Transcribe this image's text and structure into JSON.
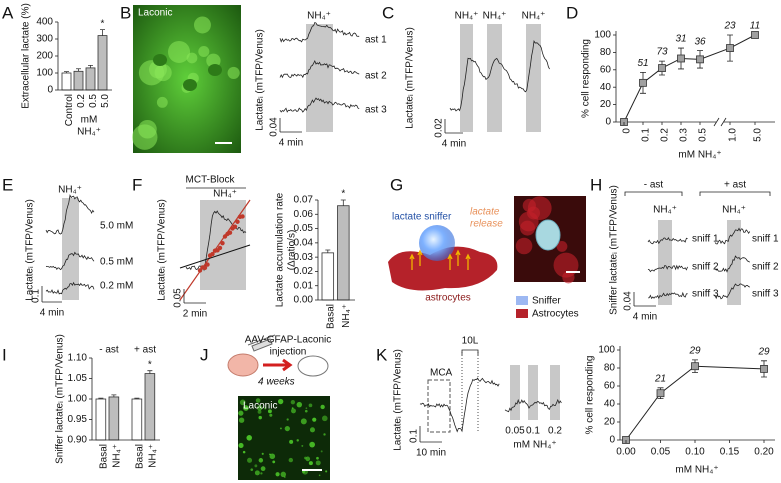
{
  "figure": {
    "panels": [
      "A",
      "B",
      "C",
      "D",
      "E",
      "F",
      "G",
      "H",
      "I",
      "J",
      "K"
    ],
    "B": {
      "image_label": "Laconic",
      "stimulus": "NH₄⁺",
      "ylabel": "Lactateᵢ (mTFP/Venus)",
      "traces": [
        "ast 1",
        "ast 2",
        "ast 3"
      ],
      "scale_y": "0.04",
      "scale_x": "4 min"
    },
    "C": {
      "stimuli": [
        "NH₄⁺",
        "NH₄⁺",
        "NH₄⁺"
      ],
      "ylabel": "Lactateᵢ (mTFP/Venus)",
      "scale_y": "0.02",
      "scale_x": "4 min"
    },
    "E": {
      "stimulus": "NH₄⁺",
      "traces": [
        "5.0 mM",
        "0.5 mM",
        "0.2 mM"
      ],
      "ylabel": "Lactateᵢ (mTFP/Venus)",
      "scale_y": "0.1",
      "scale_x": "4 min"
    },
    "F": {
      "block": "MCT-Block",
      "stimulus": "NH₄⁺",
      "ylabel": "Lactateᵢ (mTFP/Venus)",
      "scale_y": "0.05",
      "scale_x": "2 min"
    },
    "G": {
      "sniffer": "lactate sniffer",
      "release": [
        "lactate",
        "release"
      ],
      "cells": "astrocytes",
      "legend": [
        "Sniffer",
        "Astrocytes"
      ]
    },
    "H": {
      "groups": [
        "- ast",
        "+ ast"
      ],
      "stimuli": [
        "NH₄⁺",
        "NH₄⁺"
      ],
      "traces_minus": [
        "sniff 1",
        "sniff 2",
        "sniff 3"
      ],
      "traces_plus": [
        "sniff 1",
        "sniff 2",
        "sniff 3"
      ],
      "ylabel": "Sniffer lactateᵢ (mTFP/Venus)",
      "scale_y": "0.04",
      "scale_x": "4 min"
    },
    "J": {
      "injection": [
        "AAV-GFAP-Laconic",
        "injection"
      ],
      "duration": "4 weeks",
      "image_label": "Laconic"
    },
    "K": {
      "ylabel": "Lactateᵢ (mTFP/Venus)",
      "events": [
        "MCA",
        "10L"
      ],
      "concentrations": [
        "0.05",
        "0.1",
        "0.2"
      ],
      "unit": "mM NH₄⁺",
      "scale_y": "0.1",
      "scale_x": "10 min"
    }
  },
  "chart_data": [
    {
      "type": "bar",
      "ylabel": "Extracellular lactate (%)",
      "categories": [
        "Control",
        "0.2",
        "0.5",
        "5.0"
      ],
      "values": [
        100,
        110,
        130,
        320
      ],
      "errors": [
        8,
        15,
        15,
        35
      ],
      "colors": [
        "#ffffff",
        "#bdbdbd",
        "#bdbdbd",
        "#bdbdbd"
      ],
      "ylim": [
        0,
        400
      ],
      "yticks": [
        0,
        100,
        200,
        300,
        400
      ],
      "xlabel": [
        "mM",
        "NH₄⁺"
      ],
      "annotation": "*"
    },
    {
      "type": "line",
      "ylabel": "% cell responding",
      "xlabel": "mM NH₄⁺",
      "categories": [
        "0",
        "0.1",
        "0.2",
        "0.3",
        "0.5",
        "1.0",
        "5.0"
      ],
      "values": [
        0,
        45,
        62,
        73,
        72,
        85,
        100
      ],
      "errors": [
        0,
        12,
        8,
        12,
        10,
        15,
        0
      ],
      "n": [
        null,
        51,
        73,
        31,
        36,
        23,
        11
      ],
      "color": "#a0a0a0",
      "ylim": [
        0,
        100
      ],
      "yticks": [
        0,
        20,
        40,
        60,
        80,
        100
      ]
    },
    {
      "type": "bar",
      "ylabel": [
        "Lactate accumulation rate",
        "(Δratio/s)"
      ],
      "categories": [
        "Basal",
        "NH₄⁺"
      ],
      "values": [
        0.033,
        0.066
      ],
      "errors": [
        0.002,
        0.004
      ],
      "colors": [
        "#ffffff",
        "#bdbdbd"
      ],
      "ylim": [
        0,
        0.07
      ],
      "yticks": [
        {
          "value": 0,
          "label": "0.00"
        },
        {
          "value": 0.01,
          "label": "0.01"
        },
        {
          "value": 0.02,
          "label": "0.02"
        },
        {
          "value": 0.03,
          "label": "0.03"
        },
        {
          "value": 0.04,
          "label": "0.04"
        },
        {
          "value": 0.05,
          "label": "0.05"
        },
        {
          "value": 0.06,
          "label": "0.06"
        },
        {
          "value": 0.07,
          "label": "0.07"
        }
      ],
      "annotation": "*"
    },
    {
      "type": "bar",
      "ylabel": "Sniffer lactateᵢ (mTFP/Venus)",
      "groups": [
        "- ast",
        "+ ast"
      ],
      "categories": [
        "Basal",
        "NH₄⁺",
        "Basal",
        "NH₄⁺"
      ],
      "values": [
        1.0,
        1.005,
        1.0,
        1.062
      ],
      "errors": [
        0.002,
        0.005,
        0.002,
        0.007
      ],
      "colors": [
        "#ffffff",
        "#bdbdbd",
        "#ffffff",
        "#bdbdbd"
      ],
      "ylim": [
        0.9,
        1.1
      ],
      "yticks": [
        {
          "value": 0.9,
          "label": "0.90"
        },
        {
          "value": 0.95,
          "label": "0.95"
        },
        {
          "value": 1.0,
          "label": "1.00"
        },
        {
          "value": 1.05,
          "label": "1.05"
        },
        {
          "value": 1.1,
          "label": "1.10"
        }
      ],
      "annotation": "*"
    },
    {
      "type": "line",
      "ylabel": "% cell responding",
      "xlabel": "mM NH₄⁺",
      "x": [
        0,
        0.05,
        0.1,
        0.2
      ],
      "values": [
        0,
        52,
        82,
        79
      ],
      "errors": [
        0,
        6,
        7,
        9
      ],
      "n": [
        null,
        21,
        29,
        29
      ],
      "color": "#a0a0a0",
      "xlim": [
        0,
        0.2
      ],
      "xticks": [
        {
          "value": 0,
          "label": "0.00"
        },
        {
          "value": 0.05,
          "label": "0.05"
        },
        {
          "value": 0.1,
          "label": "0.10"
        },
        {
          "value": 0.15,
          "label": "0.15"
        },
        {
          "value": 0.2,
          "label": "0.20"
        }
      ],
      "ylim": [
        0,
        100
      ],
      "yticks": [
        0,
        20,
        40,
        60,
        80,
        100
      ]
    }
  ]
}
